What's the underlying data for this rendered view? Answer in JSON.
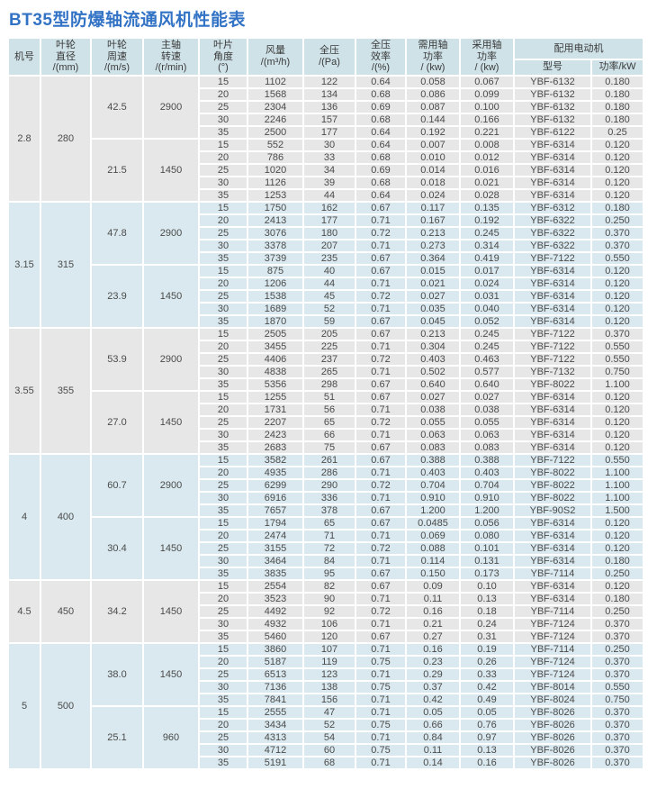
{
  "page": {
    "title": "BT35型防爆轴流通风机性能表"
  },
  "colors": {
    "title_color": "#3273c5",
    "header_bg": "#cfe2e8",
    "gray_row": "#e7e7e7",
    "blue_row": "#d9e9ef",
    "text_color": "#4b4b4b"
  },
  "table": {
    "header": {
      "machine_no": "机号",
      "impeller_diameter": "叶轮\n直径\n/(mm)",
      "impeller_speed": "叶轮\n周速\n/(m/s)",
      "shaft_rpm": "主轴\n转速\n/(r/min)",
      "blade_angle": "叶片\n角度\n(°)",
      "air_volume": "风量\n/(m³/h)",
      "total_pressure": "全压\n/(Pa)",
      "efficiency": "全压\n效率\n/(%)",
      "required_power": "需用轴\n功率\n/ (kw)",
      "adopted_power": "采用轴\n功率\n/ (kw)",
      "motor_group": "配用电动机",
      "motor_model": "型号",
      "motor_power": "功率/kW"
    },
    "groups": [
      {
        "machine": "2.8",
        "diameter": "280",
        "tone": "gray",
        "subgroups": [
          {
            "speed": "42.5",
            "rpm": "2900",
            "rows": [
              [
                "15",
                "1102",
                "122",
                "0.64",
                "0.058",
                "0.067",
                "YBF-6132",
                "0.180"
              ],
              [
                "20",
                "1568",
                "134",
                "0.68",
                "0.086",
                "0.099",
                "YBF-6132",
                "0.180"
              ],
              [
                "25",
                "2304",
                "136",
                "0.69",
                "0.087",
                "0.100",
                "YBF-6132",
                "0.180"
              ],
              [
                "30",
                "2246",
                "157",
                "0.68",
                "0.144",
                "0.166",
                "YBF-6132",
                "0.180"
              ],
              [
                "35",
                "2500",
                "177",
                "0.64",
                "0.192",
                "0.221",
                "YBF-6122",
                "0.25"
              ]
            ]
          },
          {
            "speed": "21.5",
            "rpm": "1450",
            "rows": [
              [
                "15",
                "552",
                "30",
                "0.64",
                "0.007",
                "0.008",
                "YBF-6314",
                "0.120"
              ],
              [
                "20",
                "786",
                "33",
                "0.68",
                "0.010",
                "0.012",
                "YBF-6314",
                "0.120"
              ],
              [
                "25",
                "1020",
                "34",
                "0.69",
                "0.014",
                "0.016",
                "YBF-6314",
                "0.120"
              ],
              [
                "30",
                "1126",
                "39",
                "0.68",
                "0.018",
                "0.021",
                "YBF-6314",
                "0.120"
              ],
              [
                "35",
                "1253",
                "44",
                "0.64",
                "0.024",
                "0.028",
                "YBF-6314",
                "0.120"
              ]
            ]
          }
        ]
      },
      {
        "machine": "3.15",
        "diameter": "315",
        "tone": "blue",
        "subgroups": [
          {
            "speed": "47.8",
            "rpm": "2900",
            "rows": [
              [
                "15",
                "1750",
                "162",
                "0.67",
                "0.117",
                "0.135",
                "YBF-6312",
                "0.180"
              ],
              [
                "20",
                "2413",
                "177",
                "0.71",
                "0.167",
                "0.192",
                "YBF-6322",
                "0.250"
              ],
              [
                "25",
                "3076",
                "180",
                "0.72",
                "0.213",
                "0.245",
                "YBF-6322",
                "0.370"
              ],
              [
                "30",
                "3378",
                "207",
                "0.71",
                "0.273",
                "0.314",
                "YBF-6322",
                "0.370"
              ],
              [
                "35",
                "3739",
                "235",
                "0.67",
                "0.364",
                "0.419",
                "YBF-7122",
                "0.550"
              ]
            ]
          },
          {
            "speed": "23.9",
            "rpm": "1450",
            "rows": [
              [
                "15",
                "875",
                "40",
                "0.67",
                "0.015",
                "0.017",
                "YBF-6314",
                "0.120"
              ],
              [
                "20",
                "1206",
                "44",
                "0.71",
                "0.021",
                "0.024",
                "YBF-6314",
                "0.120"
              ],
              [
                "25",
                "1538",
                "45",
                "0.72",
                "0.027",
                "0.031",
                "YBF-6314",
                "0.120"
              ],
              [
                "30",
                "1689",
                "52",
                "0.71",
                "0.035",
                "0.040",
                "YBF-6314",
                "0.120"
              ],
              [
                "35",
                "1870",
                "59",
                "0.67",
                "0.045",
                "0.052",
                "YBF-6314",
                "0.120"
              ]
            ]
          }
        ]
      },
      {
        "machine": "3.55",
        "diameter": "355",
        "tone": "gray",
        "subgroups": [
          {
            "speed": "53.9",
            "rpm": "2900",
            "rows": [
              [
                "15",
                "2505",
                "205",
                "0.67",
                "0.213",
                "0.245",
                "YBF-7122",
                "0.370"
              ],
              [
                "20",
                "3455",
                "225",
                "0.71",
                "0.304",
                "0.245",
                "YBF-7122",
                "0.550"
              ],
              [
                "25",
                "4406",
                "237",
                "0.72",
                "0.403",
                "0.463",
                "YBF-7122",
                "0.550"
              ],
              [
                "30",
                "4838",
                "265",
                "0.71",
                "0.502",
                "0.577",
                "YBF-7132",
                "0.750"
              ],
              [
                "35",
                "5356",
                "298",
                "0.67",
                "0.640",
                "0.640",
                "YBF-8022",
                "1.100"
              ]
            ]
          },
          {
            "speed": "27.0",
            "rpm": "1450",
            "rows": [
              [
                "15",
                "1255",
                "51",
                "0.67",
                "0.027",
                "0.027",
                "YBF-6314",
                "0.120"
              ],
              [
                "20",
                "1731",
                "56",
                "0.71",
                "0.038",
                "0.038",
                "YBF-6314",
                "0.120"
              ],
              [
                "25",
                "2207",
                "65",
                "0.72",
                "0.055",
                "0.055",
                "YBF-6314",
                "0.120"
              ],
              [
                "30",
                "2423",
                "66",
                "0.71",
                "0.063",
                "0.063",
                "YBF-6314",
                "0.120"
              ],
              [
                "35",
                "2683",
                "75",
                "0.67",
                "0.083",
                "0.083",
                "YBF-6314",
                "0.120"
              ]
            ]
          }
        ]
      },
      {
        "machine": "4",
        "diameter": "400",
        "tone": "blue",
        "subgroups": [
          {
            "speed": "60.7",
            "rpm": "2900",
            "rows": [
              [
                "15",
                "3582",
                "261",
                "0.67",
                "0.388",
                "0.388",
                "YBF-7122",
                "0.550"
              ],
              [
                "20",
                "4935",
                "286",
                "0.71",
                "0.403",
                "0.403",
                "YBF-8022",
                "1.100"
              ],
              [
                "25",
                "6299",
                "290",
                "0.72",
                "0.704",
                "0.704",
                "YBF-8022",
                "1.100"
              ],
              [
                "30",
                "6916",
                "336",
                "0.71",
                "0.910",
                "0.910",
                "YBF-8022",
                "1.100"
              ],
              [
                "35",
                "7657",
                "378",
                "0.67",
                "1.200",
                "1.200",
                "YBF-90S2",
                "1.500"
              ]
            ]
          },
          {
            "speed": "30.4",
            "rpm": "1450",
            "rows": [
              [
                "15",
                "1794",
                "65",
                "0.67",
                "0.0485",
                "0.056",
                "YBF-6314",
                "0.120"
              ],
              [
                "20",
                "2474",
                "71",
                "0.71",
                "0.069",
                "0.080",
                "YBF-6314",
                "0.120"
              ],
              [
                "25",
                "3155",
                "72",
                "0.72",
                "0.088",
                "0.101",
                "YBF-6314",
                "0.120"
              ],
              [
                "30",
                "3464",
                "84",
                "0.71",
                "0.114",
                "0.131",
                "YBF-6314",
                "0.180"
              ],
              [
                "35",
                "3835",
                "95",
                "0.67",
                "0.150",
                "0.173",
                "YBF-7114",
                "0.250"
              ]
            ]
          }
        ]
      },
      {
        "machine": "4.5",
        "diameter": "450",
        "tone": "gray",
        "subgroups": [
          {
            "speed": "34.2",
            "rpm": "1450",
            "rows": [
              [
                "15",
                "2554",
                "82",
                "0.67",
                "0.09",
                "0.10",
                "YBF-6314",
                "0.120"
              ],
              [
                "20",
                "3523",
                "90",
                "0.71",
                "0.11",
                "0.13",
                "YBF-6314",
                "0.180"
              ],
              [
                "25",
                "4492",
                "92",
                "0.72",
                "0.16",
                "0.18",
                "YBF-7114",
                "0.250"
              ],
              [
                "30",
                "4932",
                "106",
                "0.71",
                "0.21",
                "0.24",
                "YBF-7124",
                "0.370"
              ],
              [
                "35",
                "5460",
                "120",
                "0.67",
                "0.27",
                "0.31",
                "YBF-7124",
                "0.370"
              ]
            ]
          }
        ]
      },
      {
        "machine": "5",
        "diameter": "500",
        "tone": "blue",
        "subgroups": [
          {
            "speed": "38.0",
            "rpm": "1450",
            "rows": [
              [
                "15",
                "3860",
                "107",
                "0.71",
                "0.16",
                "0.19",
                "YBF-7114",
                "0.250"
              ],
              [
                "20",
                "5187",
                "119",
                "0.75",
                "0.23",
                "0.26",
                "YBF-7124",
                "0.370"
              ],
              [
                "25",
                "6513",
                "123",
                "0.71",
                "0.29",
                "0.33",
                "YBF-7124",
                "0.370"
              ],
              [
                "30",
                "7136",
                "138",
                "0.75",
                "0.37",
                "0.42",
                "YBF-8014",
                "0.550"
              ],
              [
                "35",
                "7841",
                "156",
                "0.71",
                "0.42",
                "0.49",
                "YBF-8024",
                "0.750"
              ]
            ]
          },
          {
            "speed": "25.1",
            "rpm": "960",
            "rows": [
              [
                "15",
                "2555",
                "47",
                "0.71",
                "0.05",
                "0.05",
                "YBF-8026",
                "0.370"
              ],
              [
                "20",
                "3434",
                "52",
                "0.75",
                "0.66",
                "0.76",
                "YBF-8026",
                "0.370"
              ],
              [
                "25",
                "4313",
                "54",
                "0.71",
                "0.84",
                "0.97",
                "YBF-8026",
                "0.370"
              ],
              [
                "30",
                "4712",
                "60",
                "0.75",
                "0.11",
                "0.13",
                "YBF-8026",
                "0.370"
              ],
              [
                "35",
                "5191",
                "68",
                "0.71",
                "0.14",
                "0.16",
                "YBF-8026",
                "0.370"
              ]
            ]
          }
        ]
      }
    ]
  }
}
